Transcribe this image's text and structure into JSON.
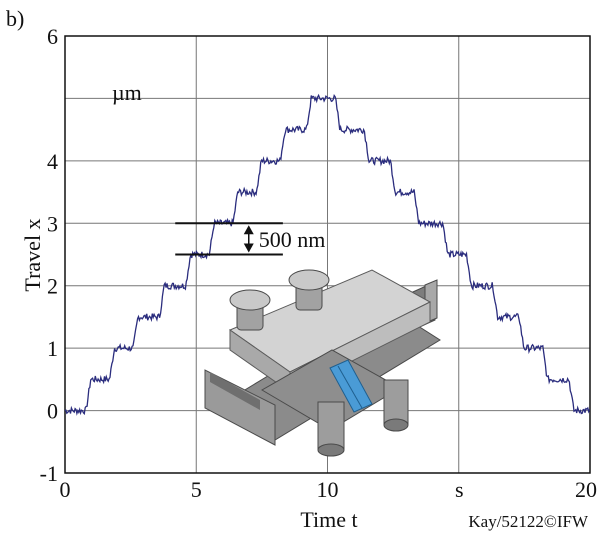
{
  "chart_data": {
    "type": "line",
    "panel_label": "b)",
    "xlabel": "Time t",
    "ylabel": "Travel x",
    "x_unit": "s",
    "y_unit": "µm",
    "xlim": [
      0,
      20
    ],
    "ylim": [
      -1,
      6
    ],
    "x_ticks": [
      "0",
      "5",
      "10",
      "20"
    ],
    "y_ticks": [
      "-1",
      "0",
      "1",
      "2",
      "3",
      "4",
      "6"
    ],
    "grid": true,
    "annotation": {
      "text": "500 nm",
      "level_low": 2.5,
      "level_high": 3.0,
      "x_from": 4.2,
      "x_to": 8.3
    },
    "credit": "Kay/52122©IFW",
    "series": [
      {
        "color": "#2b2d7e",
        "step_levels": [
          0,
          0.5,
          1.0,
          1.5,
          2.0,
          2.5,
          3.0,
          3.5,
          4.0,
          4.5,
          5.0,
          4.5,
          4.0,
          3.5,
          3.0,
          2.5,
          2.0,
          1.5,
          1.0,
          0.5,
          0
        ],
        "step_times": [
          0,
          0.8,
          1.7,
          2.6,
          3.6,
          4.6,
          5.5,
          6.4,
          7.3,
          8.2,
          9.2,
          10.3,
          11.4,
          12.4,
          13.3,
          14.4,
          15.3,
          16.3,
          17.3,
          18.2,
          19.2,
          20.0
        ]
      }
    ]
  }
}
